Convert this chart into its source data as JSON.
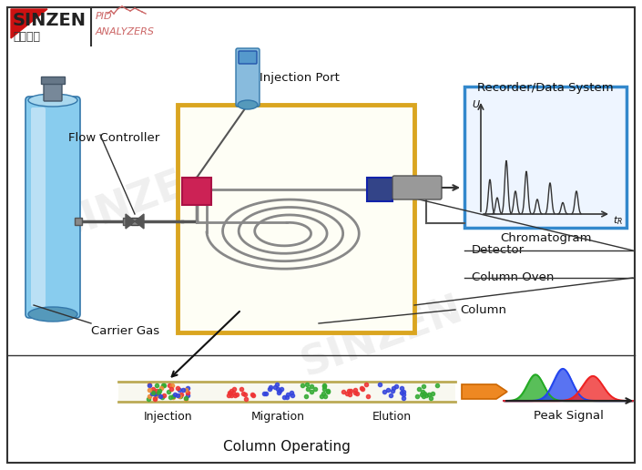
{
  "bg_color": "#ffffff",
  "border_color": "#333333",
  "watermark_text": "SINZEN",
  "label_flow_controller": "Flow Controller",
  "label_injection_port": "Injection Port",
  "label_recorder": "Recorder/Data System",
  "label_chromatogram": "Chromatogram",
  "label_detector": "Detector",
  "label_column_oven": "Column Oven",
  "label_column": "Column",
  "label_carrier_gas": "Carrier Gas",
  "label_injection": "Injection",
  "label_migration": "Migration",
  "label_elution": "Elution",
  "label_peak_signal": "Peak Signal",
  "label_column_operating": "Column Operating",
  "oven_color": "#DAA520",
  "recorder_border": "#3388CC",
  "inj_block_color": "#CC2255",
  "det_block_color": "#334488",
  "orange_arrow": "#EE8822",
  "pipe_color": "#555555",
  "coil_color": "#888888"
}
